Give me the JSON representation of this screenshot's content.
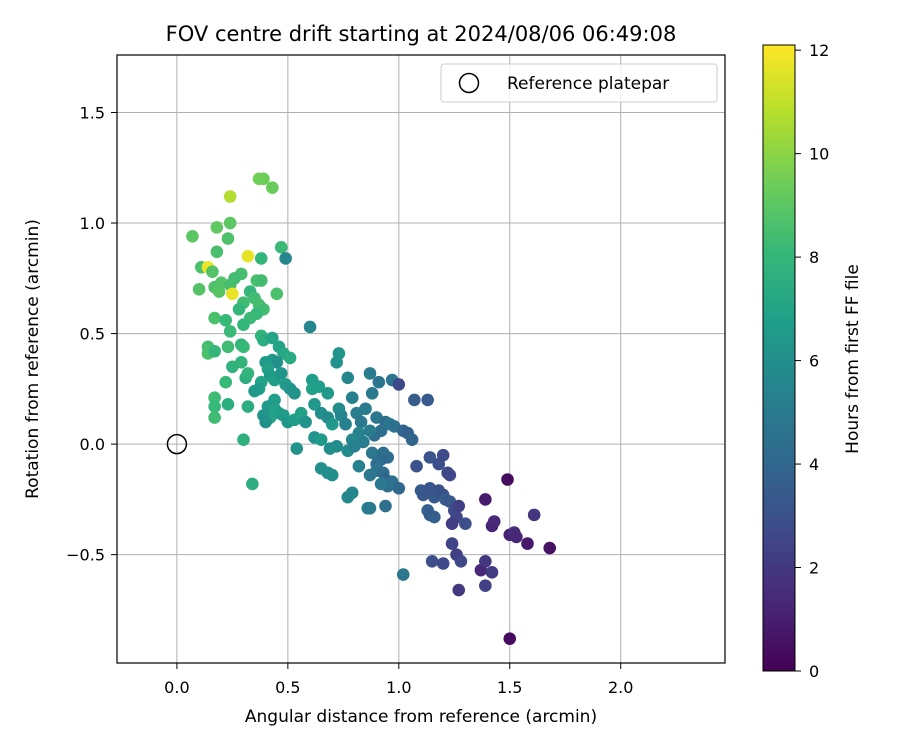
{
  "chart_data": {
    "type": "scatter",
    "title": "FOV centre drift starting at 2024/08/06 06:49:08",
    "xlabel": "Angular distance from reference (arcmin)",
    "ylabel": "Rotation from reference (arcmin)",
    "xlim": [
      -0.27,
      2.47
    ],
    "ylim": [
      -0.99,
      1.76
    ],
    "xticks": [
      0.0,
      0.5,
      1.0,
      1.5,
      2.0
    ],
    "xtick_labels": [
      "0.0",
      "0.5",
      "1.0",
      "1.5",
      "2.0"
    ],
    "yticks": [
      -0.5,
      0.0,
      0.5,
      1.0,
      1.5
    ],
    "ytick_labels": [
      "−0.5",
      "0.0",
      "0.5",
      "1.0",
      "1.5"
    ],
    "grid": true,
    "legend": {
      "position": "top-right",
      "entries": [
        {
          "label": "Reference platepar",
          "marker": "open-circle",
          "color": "#000000"
        }
      ]
    },
    "reference_point": {
      "x": 0.0,
      "y": 0.0
    },
    "colorbar": {
      "label": "Hours from first FF file",
      "colormap": "viridis",
      "range": [
        0,
        12.1
      ],
      "ticks": [
        0,
        2,
        4,
        6,
        8,
        10,
        12
      ],
      "tick_labels": [
        "0",
        "2",
        "4",
        "6",
        "8",
        "10",
        "12"
      ]
    },
    "series": [
      {
        "label_field": "c",
        "points": [
          {
            "x": 0.24,
            "y": 1.12,
            "c": 10.7
          },
          {
            "x": 0.37,
            "y": 1.2,
            "c": 9.5
          },
          {
            "x": 0.39,
            "y": 1.2,
            "c": 9.4
          },
          {
            "x": 0.43,
            "y": 1.16,
            "c": 9.3
          },
          {
            "x": 0.24,
            "y": 1.0,
            "c": 9.0
          },
          {
            "x": 0.18,
            "y": 0.98,
            "c": 9.1
          },
          {
            "x": 0.07,
            "y": 0.94,
            "c": 9.0
          },
          {
            "x": 0.23,
            "y": 0.93,
            "c": 8.7
          },
          {
            "x": 0.47,
            "y": 0.89,
            "c": 8.2
          },
          {
            "x": 0.18,
            "y": 0.87,
            "c": 8.6
          },
          {
            "x": 0.32,
            "y": 0.85,
            "c": 11.7
          },
          {
            "x": 0.38,
            "y": 0.84,
            "c": 8.0
          },
          {
            "x": 0.49,
            "y": 0.84,
            "c": 5.6
          },
          {
            "x": 0.11,
            "y": 0.8,
            "c": 8.6
          },
          {
            "x": 0.14,
            "y": 0.8,
            "c": 11.8
          },
          {
            "x": 0.16,
            "y": 0.78,
            "c": 8.8
          },
          {
            "x": 0.29,
            "y": 0.77,
            "c": 8.5
          },
          {
            "x": 0.26,
            "y": 0.75,
            "c": 8.4
          },
          {
            "x": 0.36,
            "y": 0.74,
            "c": 8.6
          },
          {
            "x": 0.38,
            "y": 0.74,
            "c": 8.4
          },
          {
            "x": 0.2,
            "y": 0.73,
            "c": 8.8
          },
          {
            "x": 0.24,
            "y": 0.72,
            "c": 8.5
          },
          {
            "x": 0.17,
            "y": 0.71,
            "c": 8.7
          },
          {
            "x": 0.1,
            "y": 0.7,
            "c": 8.8
          },
          {
            "x": 0.19,
            "y": 0.69,
            "c": 8.9
          },
          {
            "x": 0.25,
            "y": 0.68,
            "c": 11.7
          },
          {
            "x": 0.45,
            "y": 0.68,
            "c": 8.6
          },
          {
            "x": 0.33,
            "y": 0.69,
            "c": 8.0
          },
          {
            "x": 0.35,
            "y": 0.66,
            "c": 8.4
          },
          {
            "x": 0.3,
            "y": 0.64,
            "c": 8.3
          },
          {
            "x": 0.37,
            "y": 0.63,
            "c": 8.5
          },
          {
            "x": 0.39,
            "y": 0.61,
            "c": 8.4
          },
          {
            "x": 0.28,
            "y": 0.61,
            "c": 8.0
          },
          {
            "x": 0.36,
            "y": 0.59,
            "c": 8.1
          },
          {
            "x": 0.33,
            "y": 0.57,
            "c": 8.2
          },
          {
            "x": 0.17,
            "y": 0.57,
            "c": 8.6
          },
          {
            "x": 0.22,
            "y": 0.56,
            "c": 8.1
          },
          {
            "x": 0.3,
            "y": 0.54,
            "c": 8.0
          },
          {
            "x": 0.24,
            "y": 0.51,
            "c": 8.2
          },
          {
            "x": 0.38,
            "y": 0.49,
            "c": 7.9
          },
          {
            "x": 0.39,
            "y": 0.47,
            "c": 7.6
          },
          {
            "x": 0.43,
            "y": 0.48,
            "c": 7.1
          },
          {
            "x": 0.29,
            "y": 0.45,
            "c": 7.9
          },
          {
            "x": 0.3,
            "y": 0.44,
            "c": 8.1
          },
          {
            "x": 0.23,
            "y": 0.44,
            "c": 8.3
          },
          {
            "x": 0.14,
            "y": 0.44,
            "c": 8.5
          },
          {
            "x": 0.14,
            "y": 0.41,
            "c": 8.6
          },
          {
            "x": 0.17,
            "y": 0.42,
            "c": 8.0
          },
          {
            "x": 0.46,
            "y": 0.44,
            "c": 7.0
          },
          {
            "x": 0.48,
            "y": 0.41,
            "c": 7.2
          },
          {
            "x": 0.51,
            "y": 0.39,
            "c": 7.4
          },
          {
            "x": 0.43,
            "y": 0.38,
            "c": 6.4
          },
          {
            "x": 0.45,
            "y": 0.37,
            "c": 6.1
          },
          {
            "x": 0.4,
            "y": 0.37,
            "c": 6.6
          },
          {
            "x": 0.41,
            "y": 0.34,
            "c": 6.9
          },
          {
            "x": 0.29,
            "y": 0.37,
            "c": 7.9
          },
          {
            "x": 0.25,
            "y": 0.35,
            "c": 7.8
          },
          {
            "x": 0.6,
            "y": 0.53,
            "c": 5.6
          },
          {
            "x": 0.73,
            "y": 0.41,
            "c": 6.3
          },
          {
            "x": 0.72,
            "y": 0.37,
            "c": 6.2
          },
          {
            "x": 0.42,
            "y": 0.31,
            "c": 6.6
          },
          {
            "x": 0.44,
            "y": 0.29,
            "c": 6.8
          },
          {
            "x": 0.47,
            "y": 0.32,
            "c": 6.3
          },
          {
            "x": 0.38,
            "y": 0.28,
            "c": 7.0
          },
          {
            "x": 0.37,
            "y": 0.25,
            "c": 6.8
          },
          {
            "x": 0.35,
            "y": 0.24,
            "c": 6.5
          },
          {
            "x": 0.31,
            "y": 0.3,
            "c": 7.5
          },
          {
            "x": 0.32,
            "y": 0.32,
            "c": 7.9
          },
          {
            "x": 0.22,
            "y": 0.28,
            "c": 8.1
          },
          {
            "x": 0.17,
            "y": 0.21,
            "c": 8.3
          },
          {
            "x": 0.17,
            "y": 0.17,
            "c": 8.1
          },
          {
            "x": 0.17,
            "y": 0.12,
            "c": 8.3
          },
          {
            "x": 0.23,
            "y": 0.18,
            "c": 7.6
          },
          {
            "x": 0.32,
            "y": 0.17,
            "c": 7.5
          },
          {
            "x": 0.3,
            "y": 0.02,
            "c": 7.7
          },
          {
            "x": 0.34,
            "y": -0.18,
            "c": 7.5
          },
          {
            "x": 0.61,
            "y": 0.29,
            "c": 6.7
          },
          {
            "x": 0.61,
            "y": 0.25,
            "c": 6.9
          },
          {
            "x": 0.64,
            "y": 0.26,
            "c": 6.7
          },
          {
            "x": 0.68,
            "y": 0.23,
            "c": 6.5
          },
          {
            "x": 0.77,
            "y": 0.3,
            "c": 5.6
          },
          {
            "x": 0.87,
            "y": 0.32,
            "c": 5.0
          },
          {
            "x": 0.91,
            "y": 0.28,
            "c": 4.7
          },
          {
            "x": 0.97,
            "y": 0.29,
            "c": 4.6
          },
          {
            "x": 1.0,
            "y": 0.27,
            "c": 2.6
          },
          {
            "x": 0.49,
            "y": 0.27,
            "c": 6.6
          },
          {
            "x": 0.51,
            "y": 0.25,
            "c": 6.3
          },
          {
            "x": 0.53,
            "y": 0.23,
            "c": 6.2
          },
          {
            "x": 0.44,
            "y": 0.2,
            "c": 6.7
          },
          {
            "x": 0.41,
            "y": 0.17,
            "c": 6.5
          },
          {
            "x": 0.44,
            "y": 0.16,
            "c": 6.9
          },
          {
            "x": 0.42,
            "y": 0.12,
            "c": 7.0
          },
          {
            "x": 0.39,
            "y": 0.13,
            "c": 6.3
          },
          {
            "x": 0.4,
            "y": 0.1,
            "c": 6.1
          },
          {
            "x": 0.46,
            "y": 0.14,
            "c": 6.8
          },
          {
            "x": 0.48,
            "y": 0.13,
            "c": 6.6
          },
          {
            "x": 0.5,
            "y": 0.1,
            "c": 6.4
          },
          {
            "x": 0.53,
            "y": 0.11,
            "c": 6.7
          },
          {
            "x": 0.56,
            "y": 0.14,
            "c": 6.9
          },
          {
            "x": 0.58,
            "y": 0.1,
            "c": 6.3
          },
          {
            "x": 0.62,
            "y": 0.18,
            "c": 6.5
          },
          {
            "x": 0.65,
            "y": 0.14,
            "c": 6.0
          },
          {
            "x": 0.68,
            "y": 0.12,
            "c": 5.8
          },
          {
            "x": 0.7,
            "y": 0.09,
            "c": 6.5
          },
          {
            "x": 0.73,
            "y": 0.16,
            "c": 5.9
          },
          {
            "x": 0.74,
            "y": 0.13,
            "c": 5.6
          },
          {
            "x": 0.76,
            "y": 0.09,
            "c": 5.4
          },
          {
            "x": 0.79,
            "y": 0.21,
            "c": 5.3
          },
          {
            "x": 0.81,
            "y": 0.14,
            "c": 5.1
          },
          {
            "x": 0.83,
            "y": 0.1,
            "c": 4.9
          },
          {
            "x": 0.85,
            "y": 0.16,
            "c": 5.0
          },
          {
            "x": 0.88,
            "y": 0.23,
            "c": 4.9
          },
          {
            "x": 0.9,
            "y": 0.12,
            "c": 4.8
          },
          {
            "x": 0.94,
            "y": 0.1,
            "c": 4.3
          },
          {
            "x": 0.96,
            "y": 0.09,
            "c": 4.8
          },
          {
            "x": 0.98,
            "y": 0.08,
            "c": 4.5
          },
          {
            "x": 0.92,
            "y": 0.06,
            "c": 4.4
          },
          {
            "x": 0.89,
            "y": 0.04,
            "c": 4.3
          },
          {
            "x": 0.87,
            "y": 0.06,
            "c": 5.0
          },
          {
            "x": 0.82,
            "y": 0.05,
            "c": 5.4
          },
          {
            "x": 0.79,
            "y": 0.02,
            "c": 5.6
          },
          {
            "x": 0.77,
            "y": -0.03,
            "c": 5.8
          },
          {
            "x": 0.8,
            "y": -0.01,
            "c": 5.3
          },
          {
            "x": 0.84,
            "y": 0.01,
            "c": 5.1
          },
          {
            "x": 0.62,
            "y": 0.03,
            "c": 6.3
          },
          {
            "x": 0.65,
            "y": 0.02,
            "c": 6.6
          },
          {
            "x": 0.69,
            "y": -0.02,
            "c": 6.0
          },
          {
            "x": 0.72,
            "y": -0.01,
            "c": 5.9
          },
          {
            "x": 0.54,
            "y": -0.02,
            "c": 6.2
          },
          {
            "x": 1.02,
            "y": 0.06,
            "c": 4.0
          },
          {
            "x": 1.04,
            "y": 0.05,
            "c": 3.7
          },
          {
            "x": 1.06,
            "y": 0.02,
            "c": 3.9
          },
          {
            "x": 1.07,
            "y": 0.2,
            "c": 3.5
          },
          {
            "x": 1.13,
            "y": 0.2,
            "c": 3.4
          },
          {
            "x": 0.88,
            "y": -0.04,
            "c": 4.8
          },
          {
            "x": 0.93,
            "y": -0.04,
            "c": 4.5
          },
          {
            "x": 0.95,
            "y": -0.06,
            "c": 4.3
          },
          {
            "x": 0.92,
            "y": -0.07,
            "c": 4.1
          },
          {
            "x": 0.9,
            "y": -0.09,
            "c": 4.4
          },
          {
            "x": 0.82,
            "y": -0.1,
            "c": 5.3
          },
          {
            "x": 0.65,
            "y": -0.11,
            "c": 6.1
          },
          {
            "x": 0.68,
            "y": -0.13,
            "c": 5.9
          },
          {
            "x": 0.7,
            "y": -0.14,
            "c": 6.0
          },
          {
            "x": 0.87,
            "y": -0.14,
            "c": 4.8
          },
          {
            "x": 0.9,
            "y": -0.12,
            "c": 4.7
          },
          {
            "x": 0.93,
            "y": -0.13,
            "c": 4.3
          },
          {
            "x": 0.94,
            "y": -0.16,
            "c": 3.9
          },
          {
            "x": 0.95,
            "y": -0.19,
            "c": 4.2
          },
          {
            "x": 0.97,
            "y": -0.17,
            "c": 4.5
          },
          {
            "x": 1.0,
            "y": -0.2,
            "c": 4.1
          },
          {
            "x": 0.92,
            "y": -0.18,
            "c": 4.9
          },
          {
            "x": 0.77,
            "y": -0.24,
            "c": 5.7
          },
          {
            "x": 0.79,
            "y": -0.22,
            "c": 5.6
          },
          {
            "x": 0.86,
            "y": -0.29,
            "c": 5.2
          },
          {
            "x": 0.87,
            "y": -0.29,
            "c": 4.9
          },
          {
            "x": 0.94,
            "y": -0.28,
            "c": 4.4
          },
          {
            "x": 1.02,
            "y": -0.59,
            "c": 4.8
          },
          {
            "x": 1.08,
            "y": -0.1,
            "c": 3.0
          },
          {
            "x": 1.14,
            "y": -0.06,
            "c": 3.2
          },
          {
            "x": 1.18,
            "y": -0.09,
            "c": 2.9
          },
          {
            "x": 1.2,
            "y": -0.05,
            "c": 2.7
          },
          {
            "x": 1.22,
            "y": -0.13,
            "c": 2.8
          },
          {
            "x": 1.23,
            "y": -0.14,
            "c": 2.6
          },
          {
            "x": 1.1,
            "y": -0.21,
            "c": 3.4
          },
          {
            "x": 1.11,
            "y": -0.23,
            "c": 3.3
          },
          {
            "x": 1.14,
            "y": -0.2,
            "c": 3.2
          },
          {
            "x": 1.16,
            "y": -0.24,
            "c": 3.4
          },
          {
            "x": 1.18,
            "y": -0.21,
            "c": 3.1
          },
          {
            "x": 1.2,
            "y": -0.23,
            "c": 3.0
          },
          {
            "x": 1.21,
            "y": -0.25,
            "c": 3.6
          },
          {
            "x": 1.23,
            "y": -0.26,
            "c": 3.3
          },
          {
            "x": 1.13,
            "y": -0.3,
            "c": 3.7
          },
          {
            "x": 1.14,
            "y": -0.32,
            "c": 3.4
          },
          {
            "x": 1.16,
            "y": -0.33,
            "c": 3.6
          },
          {
            "x": 1.25,
            "y": -0.3,
            "c": 2.8
          },
          {
            "x": 1.27,
            "y": -0.28,
            "c": 2.3
          },
          {
            "x": 1.26,
            "y": -0.33,
            "c": 2.5
          },
          {
            "x": 1.24,
            "y": -0.36,
            "c": 2.2
          },
          {
            "x": 1.3,
            "y": -0.36,
            "c": 2.9
          },
          {
            "x": 1.15,
            "y": -0.53,
            "c": 2.9
          },
          {
            "x": 1.2,
            "y": -0.54,
            "c": 2.7
          },
          {
            "x": 1.24,
            "y": -0.45,
            "c": 2.4
          },
          {
            "x": 1.26,
            "y": -0.5,
            "c": 2.3
          },
          {
            "x": 1.28,
            "y": -0.53,
            "c": 2.6
          },
          {
            "x": 1.27,
            "y": -0.66,
            "c": 2.0
          },
          {
            "x": 1.37,
            "y": -0.57,
            "c": 1.3
          },
          {
            "x": 1.39,
            "y": -0.53,
            "c": 1.9
          },
          {
            "x": 1.42,
            "y": -0.58,
            "c": 2.1
          },
          {
            "x": 1.39,
            "y": -0.64,
            "c": 2.3
          },
          {
            "x": 1.39,
            "y": -0.25,
            "c": 0.9
          },
          {
            "x": 1.49,
            "y": -0.16,
            "c": 0.4
          },
          {
            "x": 1.42,
            "y": -0.37,
            "c": 1.2
          },
          {
            "x": 1.43,
            "y": -0.35,
            "c": 1.4
          },
          {
            "x": 1.5,
            "y": -0.41,
            "c": 1.1
          },
          {
            "x": 1.52,
            "y": -0.4,
            "c": 1.5
          },
          {
            "x": 1.53,
            "y": -0.42,
            "c": 1.3
          },
          {
            "x": 1.58,
            "y": -0.45,
            "c": 0.8
          },
          {
            "x": 1.61,
            "y": -0.32,
            "c": 1.9
          },
          {
            "x": 1.68,
            "y": -0.47,
            "c": 0.6
          },
          {
            "x": 1.5,
            "y": -0.88,
            "c": 0.3
          }
        ]
      }
    ]
  }
}
